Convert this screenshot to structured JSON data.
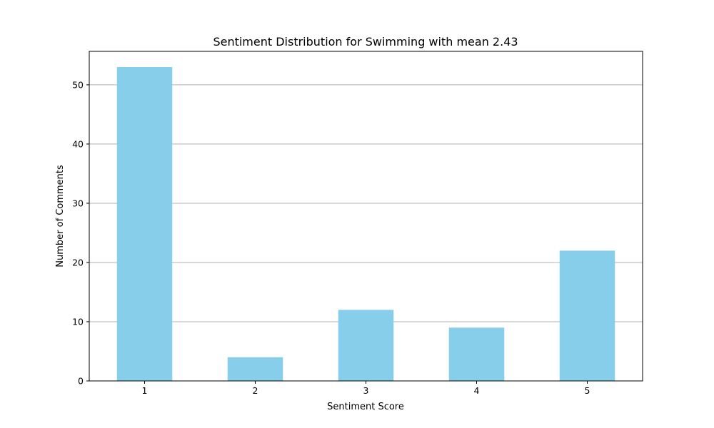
{
  "chart_data": {
    "type": "bar",
    "title": "Sentiment Distribution for Swimming with mean 2.43",
    "xlabel": "Sentiment Score",
    "ylabel": "Number of Comments",
    "categories": [
      "1",
      "2",
      "3",
      "4",
      "5"
    ],
    "values": [
      53,
      4,
      12,
      9,
      22
    ],
    "ylim": [
      0,
      55.65
    ],
    "yticks": [
      0,
      10,
      20,
      30,
      40,
      50
    ],
    "grid": "horizontal",
    "colors": {
      "bar": "#87ceeb",
      "grid": "#b0b0b0",
      "axis": "#000000"
    }
  }
}
